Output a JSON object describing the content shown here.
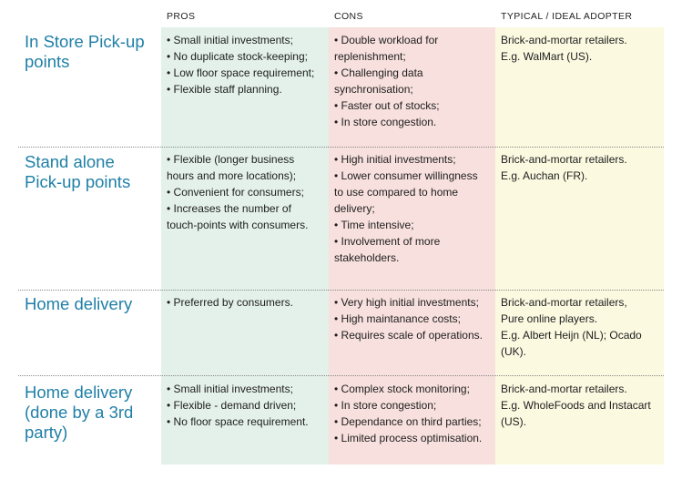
{
  "headers": {
    "pros": "PROS",
    "cons": "CONS",
    "adopter": "TYPICAL / IDEAL ADOPTER"
  },
  "rows": [
    {
      "title": [
        "In Store Pick-up",
        "points"
      ],
      "pros": [
        "• Small initial investments;",
        "• No duplicate stock-keeping;",
        "• Low floor space requirement;",
        "• Flexible staff planning."
      ],
      "cons": [
        "• Double workload for",
        "replenishment;",
        "• Challenging data",
        "synchronisation;",
        "• Faster out of stocks;",
        "• In store congestion."
      ],
      "adopter": [
        "Brick-and-mortar retailers.",
        "E.g. WalMart (US)."
      ]
    },
    {
      "title": [
        "Stand alone",
        "Pick-up points"
      ],
      "pros": [
        "• Flexible (longer business",
        "hours and more locations);",
        "• Convenient for consumers;",
        "• Increases the number of",
        "touch-points with consumers."
      ],
      "cons": [
        "• High initial investments;",
        "• Lower consumer willingness",
        "to use compared to home",
        "delivery;",
        "• Time intensive;",
        "• Involvement of more",
        "stakeholders."
      ],
      "adopter": [
        "Brick-and-mortar retailers.",
        "E.g. Auchan (FR)."
      ]
    },
    {
      "title": [
        "Home delivery"
      ],
      "pros": [
        "• Preferred by consumers."
      ],
      "cons": [
        "• Very high initial investments;",
        "• High maintanance costs;",
        "• Requires scale of operations."
      ],
      "adopter": [
        "Brick-and-mortar retailers,",
        "Pure online players.",
        "E.g. Albert Heijn (NL); Ocado",
        "(UK)."
      ]
    },
    {
      "title": [
        "Home delivery",
        "(done by a 3rd",
        "party)"
      ],
      "pros": [
        "• Small initial investments;",
        "• Flexible - demand driven;",
        "• No floor space requirement."
      ],
      "cons": [
        "• Complex stock monitoring;",
        "• In store congestion;",
        "• Dependance on third parties;",
        "• Limited process optimisation."
      ],
      "adopter": [
        "Brick-and-mortar retailers.",
        "E.g. WholeFoods and Instacart",
        "(US)."
      ]
    }
  ]
}
